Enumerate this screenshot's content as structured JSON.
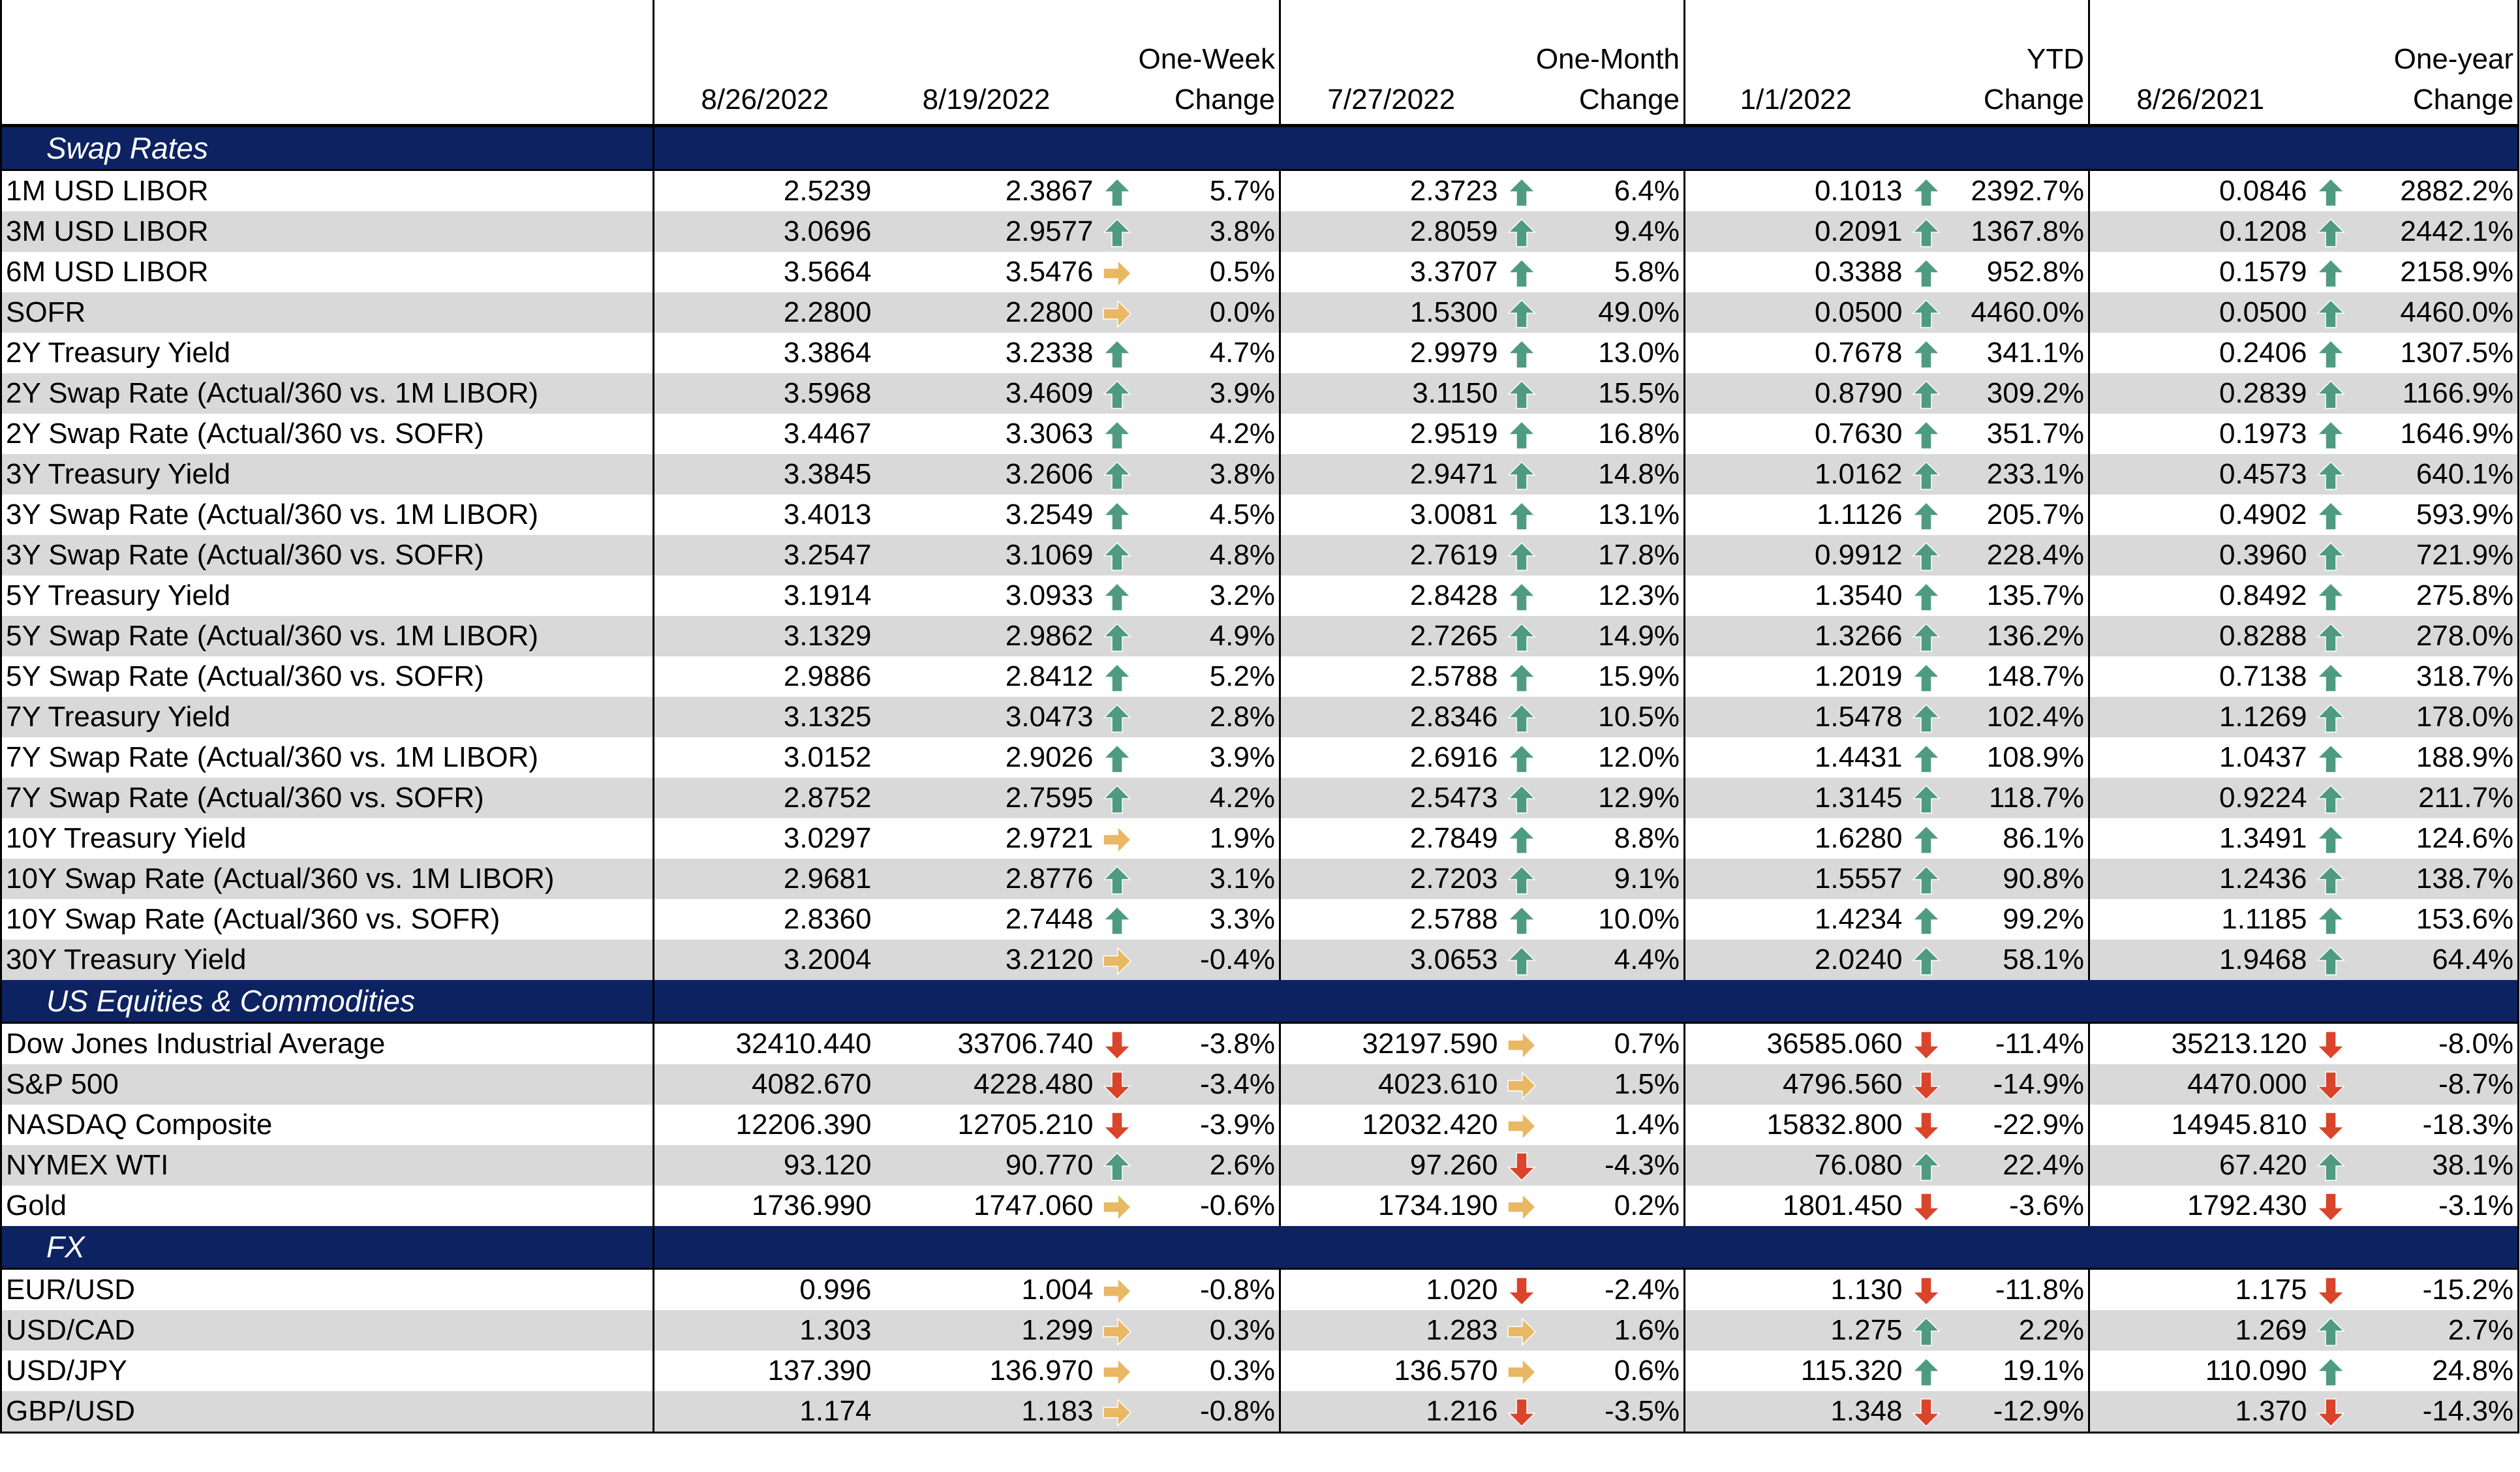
{
  "header": {
    "col_date_current": "8/26/2022",
    "col_date_week": "8/19/2022",
    "col_week_change": [
      "One-Week",
      "Change"
    ],
    "col_date_month": "7/27/2022",
    "col_month_change": [
      "One-Month",
      "Change"
    ],
    "col_date_ytd": "1/1/2022",
    "col_ytd_change": [
      "YTD",
      "Change"
    ],
    "col_date_year": "8/26/2021",
    "col_year_change": [
      "One-year",
      "Change"
    ]
  },
  "colors": {
    "section_bg": "#0d2261",
    "alt_row_bg": "#d9d9d9",
    "arrow_up": "#4e9b81",
    "arrow_down": "#d9442a",
    "arrow_flat": "#e9b864"
  },
  "sections": [
    {
      "title": "Swap Rates",
      "rows": [
        {
          "label": "1M USD LIBOR",
          "current": "2.5239",
          "week": "2.3867",
          "week_dir": "up",
          "week_chg": "5.7%",
          "month": "2.3723",
          "month_dir": "up",
          "month_chg": "6.4%",
          "ytd": "0.1013",
          "ytd_dir": "up",
          "ytd_chg": "2392.7%",
          "year": "0.0846",
          "year_dir": "up",
          "year_chg": "2882.2%"
        },
        {
          "label": "3M USD LIBOR",
          "current": "3.0696",
          "week": "2.9577",
          "week_dir": "up",
          "week_chg": "3.8%",
          "month": "2.8059",
          "month_dir": "up",
          "month_chg": "9.4%",
          "ytd": "0.2091",
          "ytd_dir": "up",
          "ytd_chg": "1367.8%",
          "year": "0.1208",
          "year_dir": "up",
          "year_chg": "2442.1%"
        },
        {
          "label": "6M USD LIBOR",
          "current": "3.5664",
          "week": "3.5476",
          "week_dir": "flat",
          "week_chg": "0.5%",
          "month": "3.3707",
          "month_dir": "up",
          "month_chg": "5.8%",
          "ytd": "0.3388",
          "ytd_dir": "up",
          "ytd_chg": "952.8%",
          "year": "0.1579",
          "year_dir": "up",
          "year_chg": "2158.9%"
        },
        {
          "label": "SOFR",
          "current": "2.2800",
          "week": "2.2800",
          "week_dir": "flat",
          "week_chg": "0.0%",
          "month": "1.5300",
          "month_dir": "up",
          "month_chg": "49.0%",
          "ytd": "0.0500",
          "ytd_dir": "up",
          "ytd_chg": "4460.0%",
          "year": "0.0500",
          "year_dir": "up",
          "year_chg": "4460.0%"
        },
        {
          "label": "2Y Treasury Yield",
          "current": "3.3864",
          "week": "3.2338",
          "week_dir": "up",
          "week_chg": "4.7%",
          "month": "2.9979",
          "month_dir": "up",
          "month_chg": "13.0%",
          "ytd": "0.7678",
          "ytd_dir": "up",
          "ytd_chg": "341.1%",
          "year": "0.2406",
          "year_dir": "up",
          "year_chg": "1307.5%"
        },
        {
          "label": "2Y Swap Rate (Actual/360 vs. 1M LIBOR)",
          "current": "3.5968",
          "week": "3.4609",
          "week_dir": "up",
          "week_chg": "3.9%",
          "month": "3.1150",
          "month_dir": "up",
          "month_chg": "15.5%",
          "ytd": "0.8790",
          "ytd_dir": "up",
          "ytd_chg": "309.2%",
          "year": "0.2839",
          "year_dir": "up",
          "year_chg": "1166.9%"
        },
        {
          "label": "2Y Swap Rate (Actual/360 vs. SOFR)",
          "current": "3.4467",
          "week": "3.3063",
          "week_dir": "up",
          "week_chg": "4.2%",
          "month": "2.9519",
          "month_dir": "up",
          "month_chg": "16.8%",
          "ytd": "0.7630",
          "ytd_dir": "up",
          "ytd_chg": "351.7%",
          "year": "0.1973",
          "year_dir": "up",
          "year_chg": "1646.9%"
        },
        {
          "label": "3Y Treasury Yield",
          "current": "3.3845",
          "week": "3.2606",
          "week_dir": "up",
          "week_chg": "3.8%",
          "month": "2.9471",
          "month_dir": "up",
          "month_chg": "14.8%",
          "ytd": "1.0162",
          "ytd_dir": "up",
          "ytd_chg": "233.1%",
          "year": "0.4573",
          "year_dir": "up",
          "year_chg": "640.1%"
        },
        {
          "label": "3Y Swap Rate (Actual/360 vs. 1M LIBOR)",
          "current": "3.4013",
          "week": "3.2549",
          "week_dir": "up",
          "week_chg": "4.5%",
          "month": "3.0081",
          "month_dir": "up",
          "month_chg": "13.1%",
          "ytd": "1.1126",
          "ytd_dir": "up",
          "ytd_chg": "205.7%",
          "year": "0.4902",
          "year_dir": "up",
          "year_chg": "593.9%"
        },
        {
          "label": "3Y Swap Rate (Actual/360 vs. SOFR)",
          "current": "3.2547",
          "week": "3.1069",
          "week_dir": "up",
          "week_chg": "4.8%",
          "month": "2.7619",
          "month_dir": "up",
          "month_chg": "17.8%",
          "ytd": "0.9912",
          "ytd_dir": "up",
          "ytd_chg": "228.4%",
          "year": "0.3960",
          "year_dir": "up",
          "year_chg": "721.9%"
        },
        {
          "label": "5Y Treasury Yield",
          "current": "3.1914",
          "week": "3.0933",
          "week_dir": "up",
          "week_chg": "3.2%",
          "month": "2.8428",
          "month_dir": "up",
          "month_chg": "12.3%",
          "ytd": "1.3540",
          "ytd_dir": "up",
          "ytd_chg": "135.7%",
          "year": "0.8492",
          "year_dir": "up",
          "year_chg": "275.8%"
        },
        {
          "label": "5Y Swap Rate (Actual/360 vs. 1M LIBOR)",
          "current": "3.1329",
          "week": "2.9862",
          "week_dir": "up",
          "week_chg": "4.9%",
          "month": "2.7265",
          "month_dir": "up",
          "month_chg": "14.9%",
          "ytd": "1.3266",
          "ytd_dir": "up",
          "ytd_chg": "136.2%",
          "year": "0.8288",
          "year_dir": "up",
          "year_chg": "278.0%"
        },
        {
          "label": "5Y Swap Rate (Actual/360 vs. SOFR)",
          "current": "2.9886",
          "week": "2.8412",
          "week_dir": "up",
          "week_chg": "5.2%",
          "month": "2.5788",
          "month_dir": "up",
          "month_chg": "15.9%",
          "ytd": "1.2019",
          "ytd_dir": "up",
          "ytd_chg": "148.7%",
          "year": "0.7138",
          "year_dir": "up",
          "year_chg": "318.7%"
        },
        {
          "label": "7Y Treasury Yield",
          "current": "3.1325",
          "week": "3.0473",
          "week_dir": "up",
          "week_chg": "2.8%",
          "month": "2.8346",
          "month_dir": "up",
          "month_chg": "10.5%",
          "ytd": "1.5478",
          "ytd_dir": "up",
          "ytd_chg": "102.4%",
          "year": "1.1269",
          "year_dir": "up",
          "year_chg": "178.0%"
        },
        {
          "label": "7Y Swap Rate (Actual/360 vs. 1M LIBOR)",
          "current": "3.0152",
          "week": "2.9026",
          "week_dir": "up",
          "week_chg": "3.9%",
          "month": "2.6916",
          "month_dir": "up",
          "month_chg": "12.0%",
          "ytd": "1.4431",
          "ytd_dir": "up",
          "ytd_chg": "108.9%",
          "year": "1.0437",
          "year_dir": "up",
          "year_chg": "188.9%"
        },
        {
          "label": "7Y Swap Rate (Actual/360 vs. SOFR)",
          "current": "2.8752",
          "week": "2.7595",
          "week_dir": "up",
          "week_chg": "4.2%",
          "month": "2.5473",
          "month_dir": "up",
          "month_chg": "12.9%",
          "ytd": "1.3145",
          "ytd_dir": "up",
          "ytd_chg": "118.7%",
          "year": "0.9224",
          "year_dir": "up",
          "year_chg": "211.7%"
        },
        {
          "label": "10Y Treasury Yield",
          "current": "3.0297",
          "week": "2.9721",
          "week_dir": "flat",
          "week_chg": "1.9%",
          "month": "2.7849",
          "month_dir": "up",
          "month_chg": "8.8%",
          "ytd": "1.6280",
          "ytd_dir": "up",
          "ytd_chg": "86.1%",
          "year": "1.3491",
          "year_dir": "up",
          "year_chg": "124.6%"
        },
        {
          "label": "10Y Swap Rate (Actual/360 vs. 1M LIBOR)",
          "current": "2.9681",
          "week": "2.8776",
          "week_dir": "up",
          "week_chg": "3.1%",
          "month": "2.7203",
          "month_dir": "up",
          "month_chg": "9.1%",
          "ytd": "1.5557",
          "ytd_dir": "up",
          "ytd_chg": "90.8%",
          "year": "1.2436",
          "year_dir": "up",
          "year_chg": "138.7%"
        },
        {
          "label": "10Y Swap Rate (Actual/360 vs. SOFR)",
          "current": "2.8360",
          "week": "2.7448",
          "week_dir": "up",
          "week_chg": "3.3%",
          "month": "2.5788",
          "month_dir": "up",
          "month_chg": "10.0%",
          "ytd": "1.4234",
          "ytd_dir": "up",
          "ytd_chg": "99.2%",
          "year": "1.1185",
          "year_dir": "up",
          "year_chg": "153.6%"
        },
        {
          "label": "30Y Treasury Yield",
          "current": "3.2004",
          "week": "3.2120",
          "week_dir": "flat",
          "week_chg": "-0.4%",
          "month": "3.0653",
          "month_dir": "up",
          "month_chg": "4.4%",
          "ytd": "2.0240",
          "ytd_dir": "up",
          "ytd_chg": "58.1%",
          "year": "1.9468",
          "year_dir": "up",
          "year_chg": "64.4%"
        }
      ]
    },
    {
      "title": "US Equities & Commodities",
      "rows": [
        {
          "label": "Dow Jones Industrial Average",
          "current": "32410.440",
          "week": "33706.740",
          "week_dir": "down",
          "week_chg": "-3.8%",
          "month": "32197.590",
          "month_dir": "flat",
          "month_chg": "0.7%",
          "ytd": "36585.060",
          "ytd_dir": "down",
          "ytd_chg": "-11.4%",
          "year": "35213.120",
          "year_dir": "down",
          "year_chg": "-8.0%"
        },
        {
          "label": "S&P 500",
          "current": "4082.670",
          "week": "4228.480",
          "week_dir": "down",
          "week_chg": "-3.4%",
          "month": "4023.610",
          "month_dir": "flat",
          "month_chg": "1.5%",
          "ytd": "4796.560",
          "ytd_dir": "down",
          "ytd_chg": "-14.9%",
          "year": "4470.000",
          "year_dir": "down",
          "year_chg": "-8.7%"
        },
        {
          "label": "NASDAQ Composite",
          "current": "12206.390",
          "week": "12705.210",
          "week_dir": "down",
          "week_chg": "-3.9%",
          "month": "12032.420",
          "month_dir": "flat",
          "month_chg": "1.4%",
          "ytd": "15832.800",
          "ytd_dir": "down",
          "ytd_chg": "-22.9%",
          "year": "14945.810",
          "year_dir": "down",
          "year_chg": "-18.3%"
        },
        {
          "label": "NYMEX WTI",
          "current": "93.120",
          "week": "90.770",
          "week_dir": "up",
          "week_chg": "2.6%",
          "month": "97.260",
          "month_dir": "down",
          "month_chg": "-4.3%",
          "ytd": "76.080",
          "ytd_dir": "up",
          "ytd_chg": "22.4%",
          "year": "67.420",
          "year_dir": "up",
          "year_chg": "38.1%"
        },
        {
          "label": "Gold",
          "current": "1736.990",
          "week": "1747.060",
          "week_dir": "flat",
          "week_chg": "-0.6%",
          "month": "1734.190",
          "month_dir": "flat",
          "month_chg": "0.2%",
          "ytd": "1801.450",
          "ytd_dir": "down",
          "ytd_chg": "-3.6%",
          "year": "1792.430",
          "year_dir": "down",
          "year_chg": "-3.1%"
        }
      ]
    },
    {
      "title": "FX",
      "rows": [
        {
          "label": "EUR/USD",
          "current": "0.996",
          "week": "1.004",
          "week_dir": "flat",
          "week_chg": "-0.8%",
          "month": "1.020",
          "month_dir": "down",
          "month_chg": "-2.4%",
          "ytd": "1.130",
          "ytd_dir": "down",
          "ytd_chg": "-11.8%",
          "year": "1.175",
          "year_dir": "down",
          "year_chg": "-15.2%"
        },
        {
          "label": "USD/CAD",
          "current": "1.303",
          "week": "1.299",
          "week_dir": "flat",
          "week_chg": "0.3%",
          "month": "1.283",
          "month_dir": "flat",
          "month_chg": "1.6%",
          "ytd": "1.275",
          "ytd_dir": "up",
          "ytd_chg": "2.2%",
          "year": "1.269",
          "year_dir": "up",
          "year_chg": "2.7%"
        },
        {
          "label": "USD/JPY",
          "current": "137.390",
          "week": "136.970",
          "week_dir": "flat",
          "week_chg": "0.3%",
          "month": "136.570",
          "month_dir": "flat",
          "month_chg": "0.6%",
          "ytd": "115.320",
          "ytd_dir": "up",
          "ytd_chg": "19.1%",
          "year": "110.090",
          "year_dir": "up",
          "year_chg": "24.8%"
        },
        {
          "label": "GBP/USD",
          "current": "1.174",
          "week": "1.183",
          "week_dir": "flat",
          "week_chg": "-0.8%",
          "month": "1.216",
          "month_dir": "down",
          "month_chg": "-3.5%",
          "ytd": "1.348",
          "ytd_dir": "down",
          "ytd_chg": "-12.9%",
          "year": "1.370",
          "year_dir": "down",
          "year_chg": "-14.3%"
        }
      ]
    }
  ]
}
